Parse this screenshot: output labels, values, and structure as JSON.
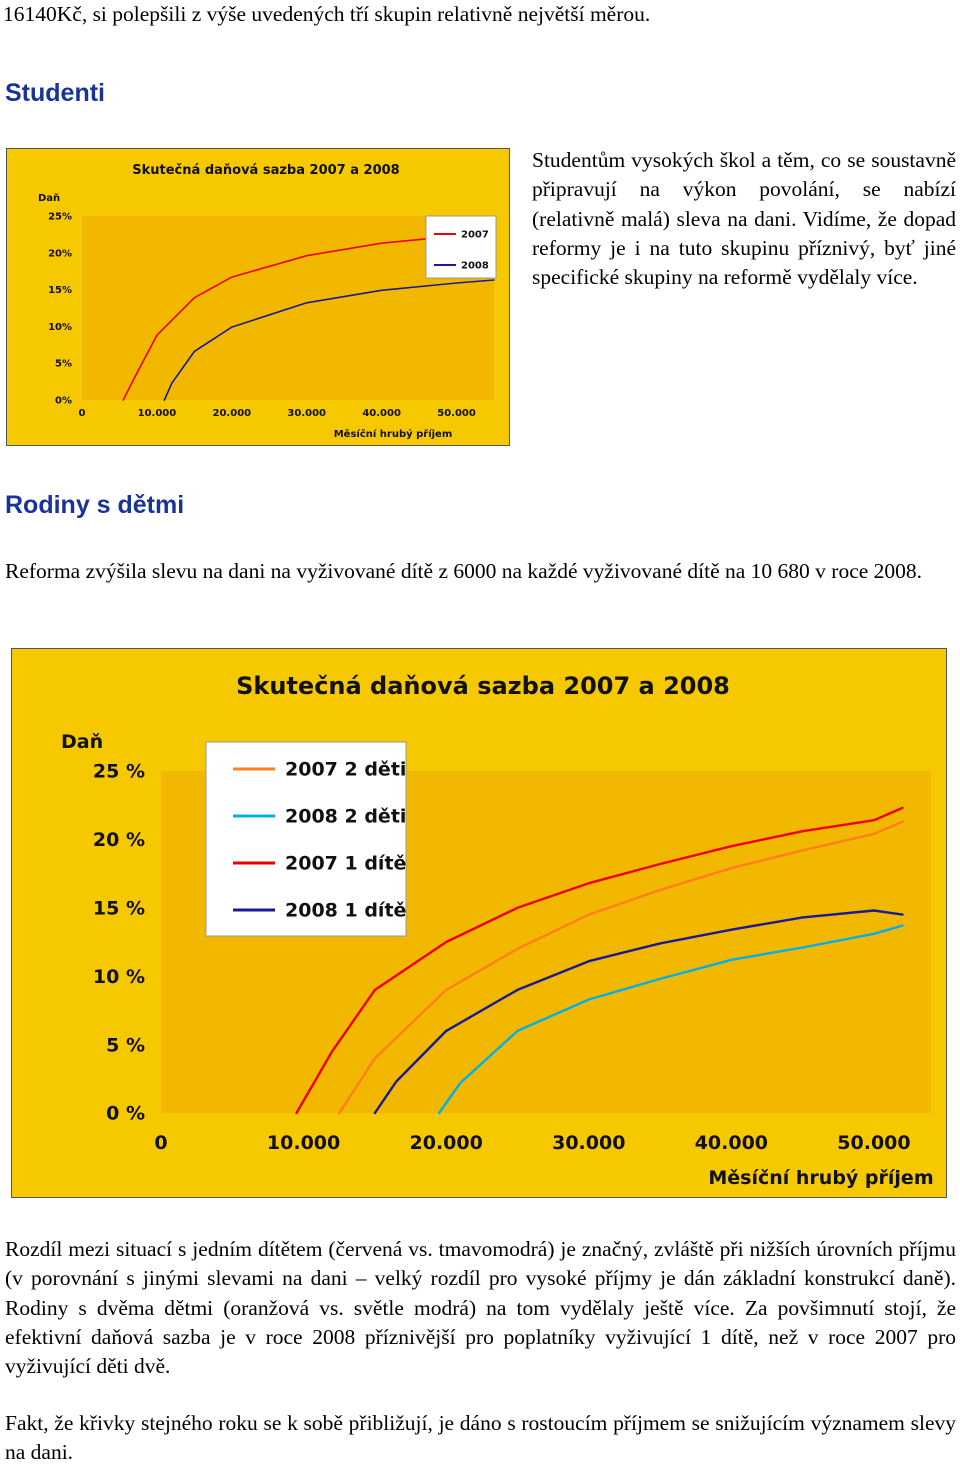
{
  "top_fragment": "16140Kč, si polepšili z výše uvedených tří skupin relativně největší měrou.",
  "section_students": {
    "heading": "Studenti",
    "text": "Studentům vysokých škol a těm, co se soustavně připravují na výkon povolání, se nabízí (relativně malá) sleva na dani. Vidíme, že dopad reformy je i na tuto skupinu příznivý, byť jiné specifické skupiny na reformě vydělaly více."
  },
  "section_families": {
    "heading": "Rodiny s dětmi",
    "intro": "Reforma zvýšila slevu na dani na vyživované dítě z 6000 na každé vyživované dítě na 10 680 v roce 2008.",
    "para1": "Rozdíl mezi situací s jedním dítětem (červená vs. tmavomodrá) je značný, zvláště při nižších úrovních příjmu (v porovnání s jinými slevami na dani – velký rozdíl pro vysoké příjmy je dán základní konstrukcí daně). Rodiny s dvěma dětmi (oranžová vs. světle modrá) na tom vydělaly ještě více. Za povšimnutí stojí, že efektivní daňová sazba je v roce 2008 příznivější pro poplatníky vyživující 1 dítě, než v roce 2007 pro vyživující děti dvě.",
    "para2": "Fakt, že křivky stejného roku se k sobě přibližují, je dáno s rostoucím příjmem se snižujícím významem slevy na dani."
  },
  "colors": {
    "frame_bg": "#f5c800",
    "plot_bg": "#f2b800",
    "title_text": "#111111",
    "red": "#ee0000",
    "orange": "#ff7f1a",
    "navy": "#1a1a99",
    "cyan": "#00b0ee"
  },
  "chart_data": [
    {
      "type": "line",
      "title": "Skutečná daňová sazba 2007 a 2008",
      "ylabel": "Daň",
      "xlabel": "Měsíční hrubý příjem",
      "x_ticks": [
        "0",
        "10.000",
        "20.000",
        "30.000",
        "40.000",
        "50.000"
      ],
      "y_ticks": [
        "0%",
        "5%",
        "10%",
        "15%",
        "20%",
        "25%"
      ],
      "xlim": [
        0,
        55000
      ],
      "ylim": [
        0,
        25
      ],
      "legend_position": "top-right",
      "series": [
        {
          "name": "2007",
          "color": "#ee0000",
          "x": [
            5500,
            7000,
            10000,
            15000,
            20000,
            30000,
            40000,
            50000,
            55000
          ],
          "y": [
            0,
            3.0,
            8.8,
            13.9,
            16.7,
            19.6,
            21.3,
            22.3,
            22.7
          ]
        },
        {
          "name": "2008",
          "color": "#1a1a99",
          "x": [
            11000,
            12000,
            15000,
            20000,
            30000,
            40000,
            50000,
            55000
          ],
          "y": [
            0,
            2.3,
            6.6,
            9.9,
            13.2,
            14.9,
            15.9,
            16.3
          ]
        }
      ]
    },
    {
      "type": "line",
      "title": "Skutečná daňová sazba 2007 a 2008",
      "ylabel": "Daň",
      "xlabel": "Měsíční hrubý příjem",
      "x_ticks": [
        "0",
        "10.000",
        "20.000",
        "30.000",
        "40.000",
        "50.000"
      ],
      "y_ticks": [
        "0 %",
        "5 %",
        "10 %",
        "15 %",
        "20 %",
        "25 %"
      ],
      "xlim": [
        0,
        54000
      ],
      "ylim": [
        0,
        25
      ],
      "legend_position": "top-left",
      "series": [
        {
          "name": "2007 2 děti",
          "color": "#ff7f1a",
          "x": [
            12500,
            15000,
            20000,
            25000,
            30000,
            35000,
            40000,
            45000,
            50000,
            52000
          ],
          "y": [
            0,
            4.0,
            9.0,
            12.0,
            14.5,
            16.3,
            17.9,
            19.2,
            20.4,
            21.3
          ]
        },
        {
          "name": "2008 2 děti",
          "color": "#00b0ee",
          "x": [
            19500,
            21000,
            25000,
            30000,
            35000,
            40000,
            45000,
            50000,
            52000
          ],
          "y": [
            0,
            2.2,
            6.0,
            8.3,
            9.8,
            11.2,
            12.1,
            13.1,
            13.7
          ]
        },
        {
          "name": "2007 1 dítě",
          "color": "#ee0000",
          "x": [
            9500,
            12000,
            15000,
            20000,
            25000,
            30000,
            35000,
            40000,
            45000,
            50000,
            52000
          ],
          "y": [
            0,
            4.5,
            9.0,
            12.5,
            15.0,
            16.8,
            18.2,
            19.5,
            20.6,
            21.4,
            22.3
          ]
        },
        {
          "name": "2008 1 dítě",
          "color": "#1a1a99",
          "x": [
            15000,
            16500,
            20000,
            25000,
            30000,
            35000,
            40000,
            45000,
            50000,
            52000
          ],
          "y": [
            0,
            2.3,
            6.0,
            9.0,
            11.1,
            12.4,
            13.4,
            14.3,
            14.8,
            14.5
          ]
        }
      ]
    }
  ]
}
